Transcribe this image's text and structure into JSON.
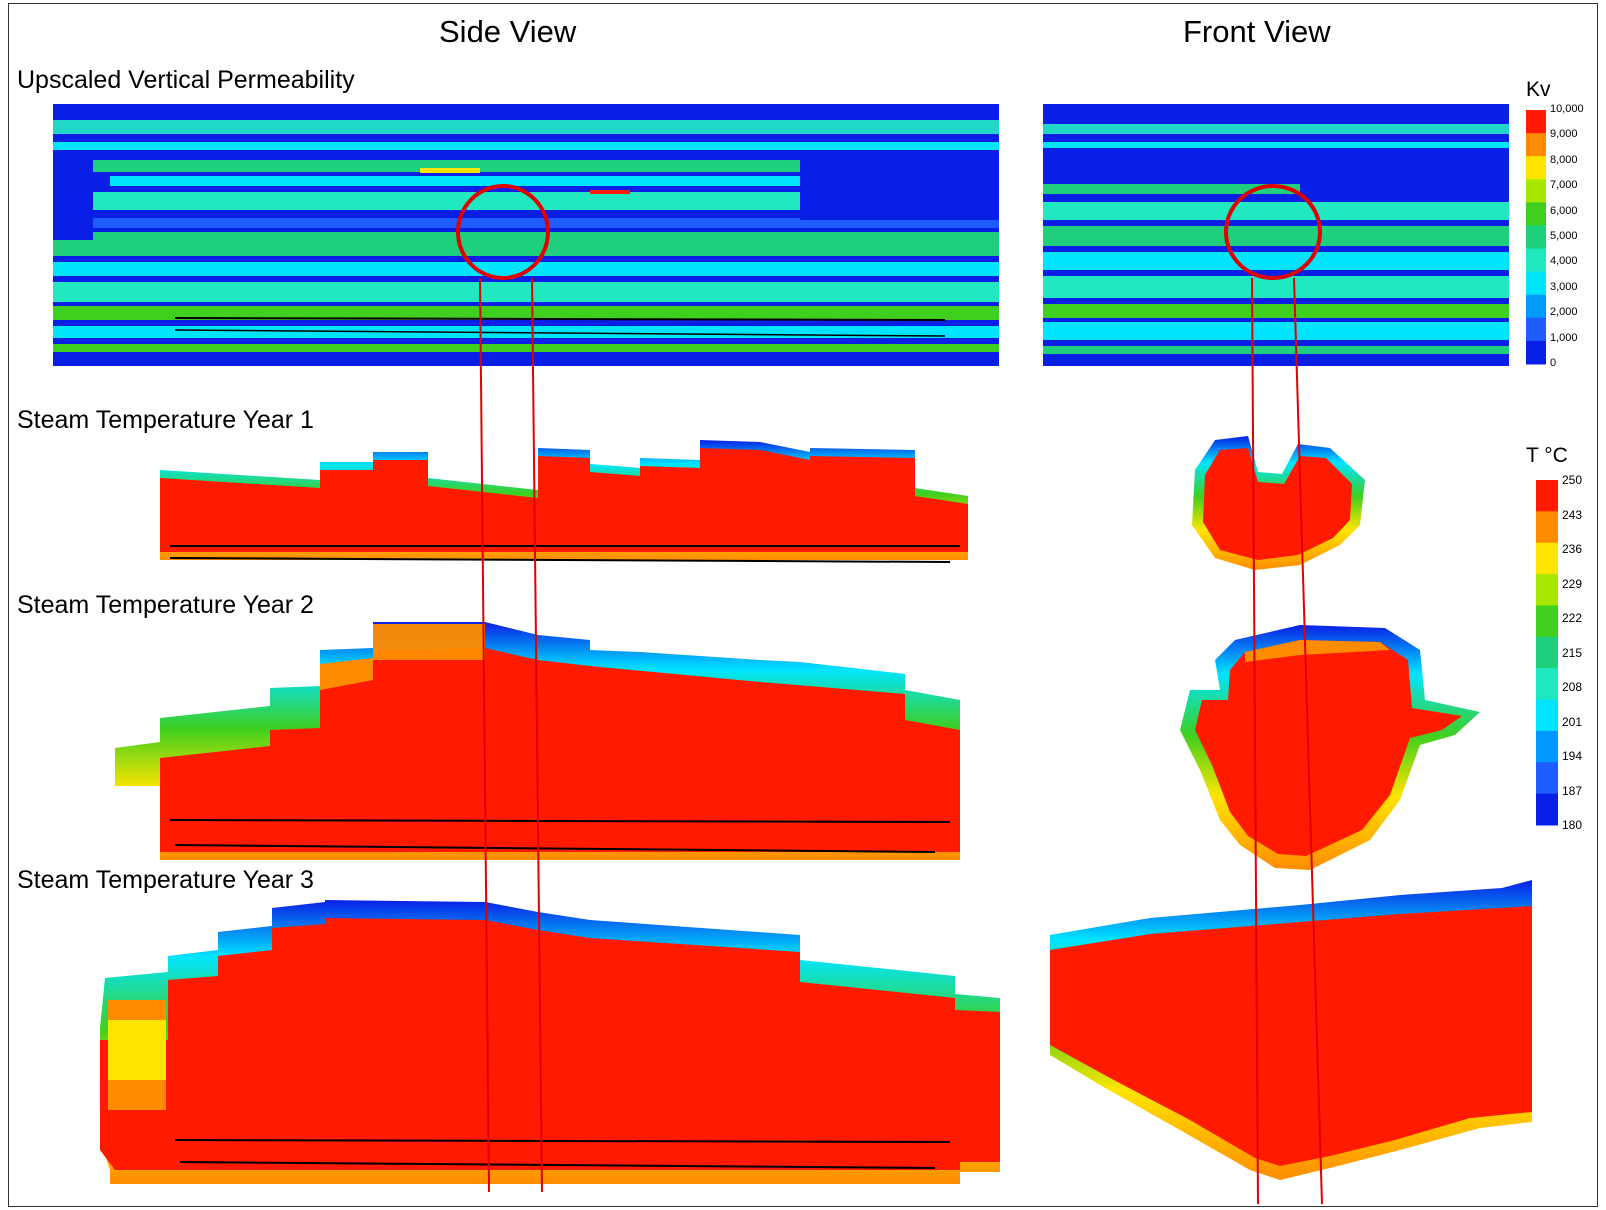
{
  "headers": {
    "side_view": "Side View",
    "front_view": "Front View"
  },
  "labels": {
    "permeability": "Upscaled Vertical Permeability",
    "year1": "Steam Temperature Year 1",
    "year2": "Steam Temperature Year 2",
    "year3": "Steam Temperature Year 3"
  },
  "legend_kv": {
    "title": "Kv",
    "ticks": [
      "10,000",
      "9,000",
      "8,000",
      "7,000",
      "6,000",
      "5,000",
      "4,000",
      "3,000",
      "2,000",
      "1,000",
      "0"
    ],
    "colors": [
      "#ff1a00",
      "#ff8c00",
      "#ffe400",
      "#a8e800",
      "#3fcf1f",
      "#1ed07e",
      "#20e8c0",
      "#00e5ff",
      "#0099ff",
      "#1f5cff",
      "#0a1fe6"
    ]
  },
  "legend_t": {
    "title": "T °C",
    "ticks": [
      "250",
      "243",
      "236",
      "229",
      "222",
      "215",
      "208",
      "201",
      "194",
      "187",
      "180"
    ],
    "colors": [
      "#ff1a00",
      "#ff8c00",
      "#ffe400",
      "#a8e800",
      "#3fcf1f",
      "#1ed07e",
      "#20e8c0",
      "#00e5ff",
      "#0099ff",
      "#1f5cff",
      "#0a1fe6"
    ]
  },
  "colors": {
    "hot": "#ff1a00",
    "orange": "#ff8c00",
    "yellow": "#ffe400",
    "green": "#3fcf1f",
    "cyan": "#00e5ff",
    "blue": "#0a1fe6",
    "marker": "#e00000"
  }
}
